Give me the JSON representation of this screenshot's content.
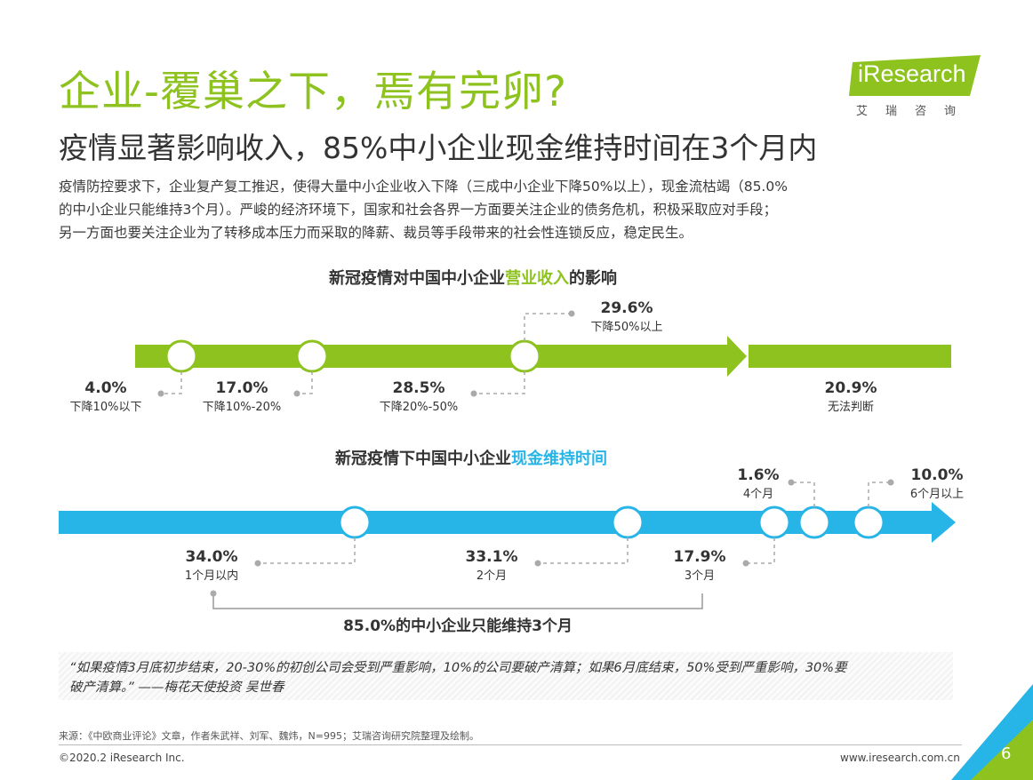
{
  "header": {
    "title": "企业-覆巢之下，焉有完卵?",
    "subtitle": "疫情显著影响收入，85%中小企业现金维持时间在3个月内"
  },
  "logo": {
    "wordmark": "iResearch",
    "chinese": "艾瑞咨询"
  },
  "intro": {
    "lines": [
      "疫情防控要求下，企业复产复工推迟，使得大量中小企业收入下降（三成中小企业下降50%以上），现金流枯竭（85.0%",
      "的中小企业只能维持3个月）。严峻的经济环境下，国家和社会各界一方面要关注企业的债务危机，积极采取应对手段；",
      "另一方面也要关注企业为了转移成本压力而采取的降薪、裁员等手段带来的社会性连锁反应，稳定民生。"
    ]
  },
  "colors": {
    "green": "#8dc21f",
    "blue": "#27b5e8",
    "text": "#333333",
    "dash": "#aaaaaa"
  },
  "chart_data": [
    {
      "type": "timeline",
      "title_pre": "新冠疫情对中国中小企业",
      "title_highlight": "营业收入",
      "title_post": "的影响",
      "categories": [
        "下降10%以下",
        "下降10%-20%",
        "下降20%-50%",
        "下降50%以上",
        "无法判断"
      ],
      "values": [
        "4.0%",
        "17.0%",
        "28.5%",
        "29.6%",
        "20.9%"
      ]
    },
    {
      "type": "timeline",
      "title_pre": "新冠疫情下中国中小企业",
      "title_highlight": "现金维持时间",
      "title_post": "",
      "categories": [
        "1个月以内",
        "2个月",
        "3个月",
        "4个月",
        "",
        "6个月以上"
      ],
      "values": [
        "34.0%",
        "33.1%",
        "17.9%",
        "1.6%",
        "",
        "10.0%"
      ],
      "summary": "85.0%的中小企业只能维持3个月"
    }
  ],
  "quote": {
    "line1": "“如果疫情3月底初步结束，20-30%的初创公司会受到严重影响，10%的公司要破产清算；如果6月底结束，50%受到严重影响，30%要",
    "line2": "破产清算。” ——梅花天使投资 吴世春"
  },
  "footer": {
    "source": "来源：《中欧商业评论》文章，作者朱武祥、刘军、魏炜，N=995；艾瑞咨询研究院整理及绘制。",
    "copyright": "©2020.2 iResearch Inc.",
    "website": "www.iresearch.com.cn",
    "page_number": "6"
  }
}
